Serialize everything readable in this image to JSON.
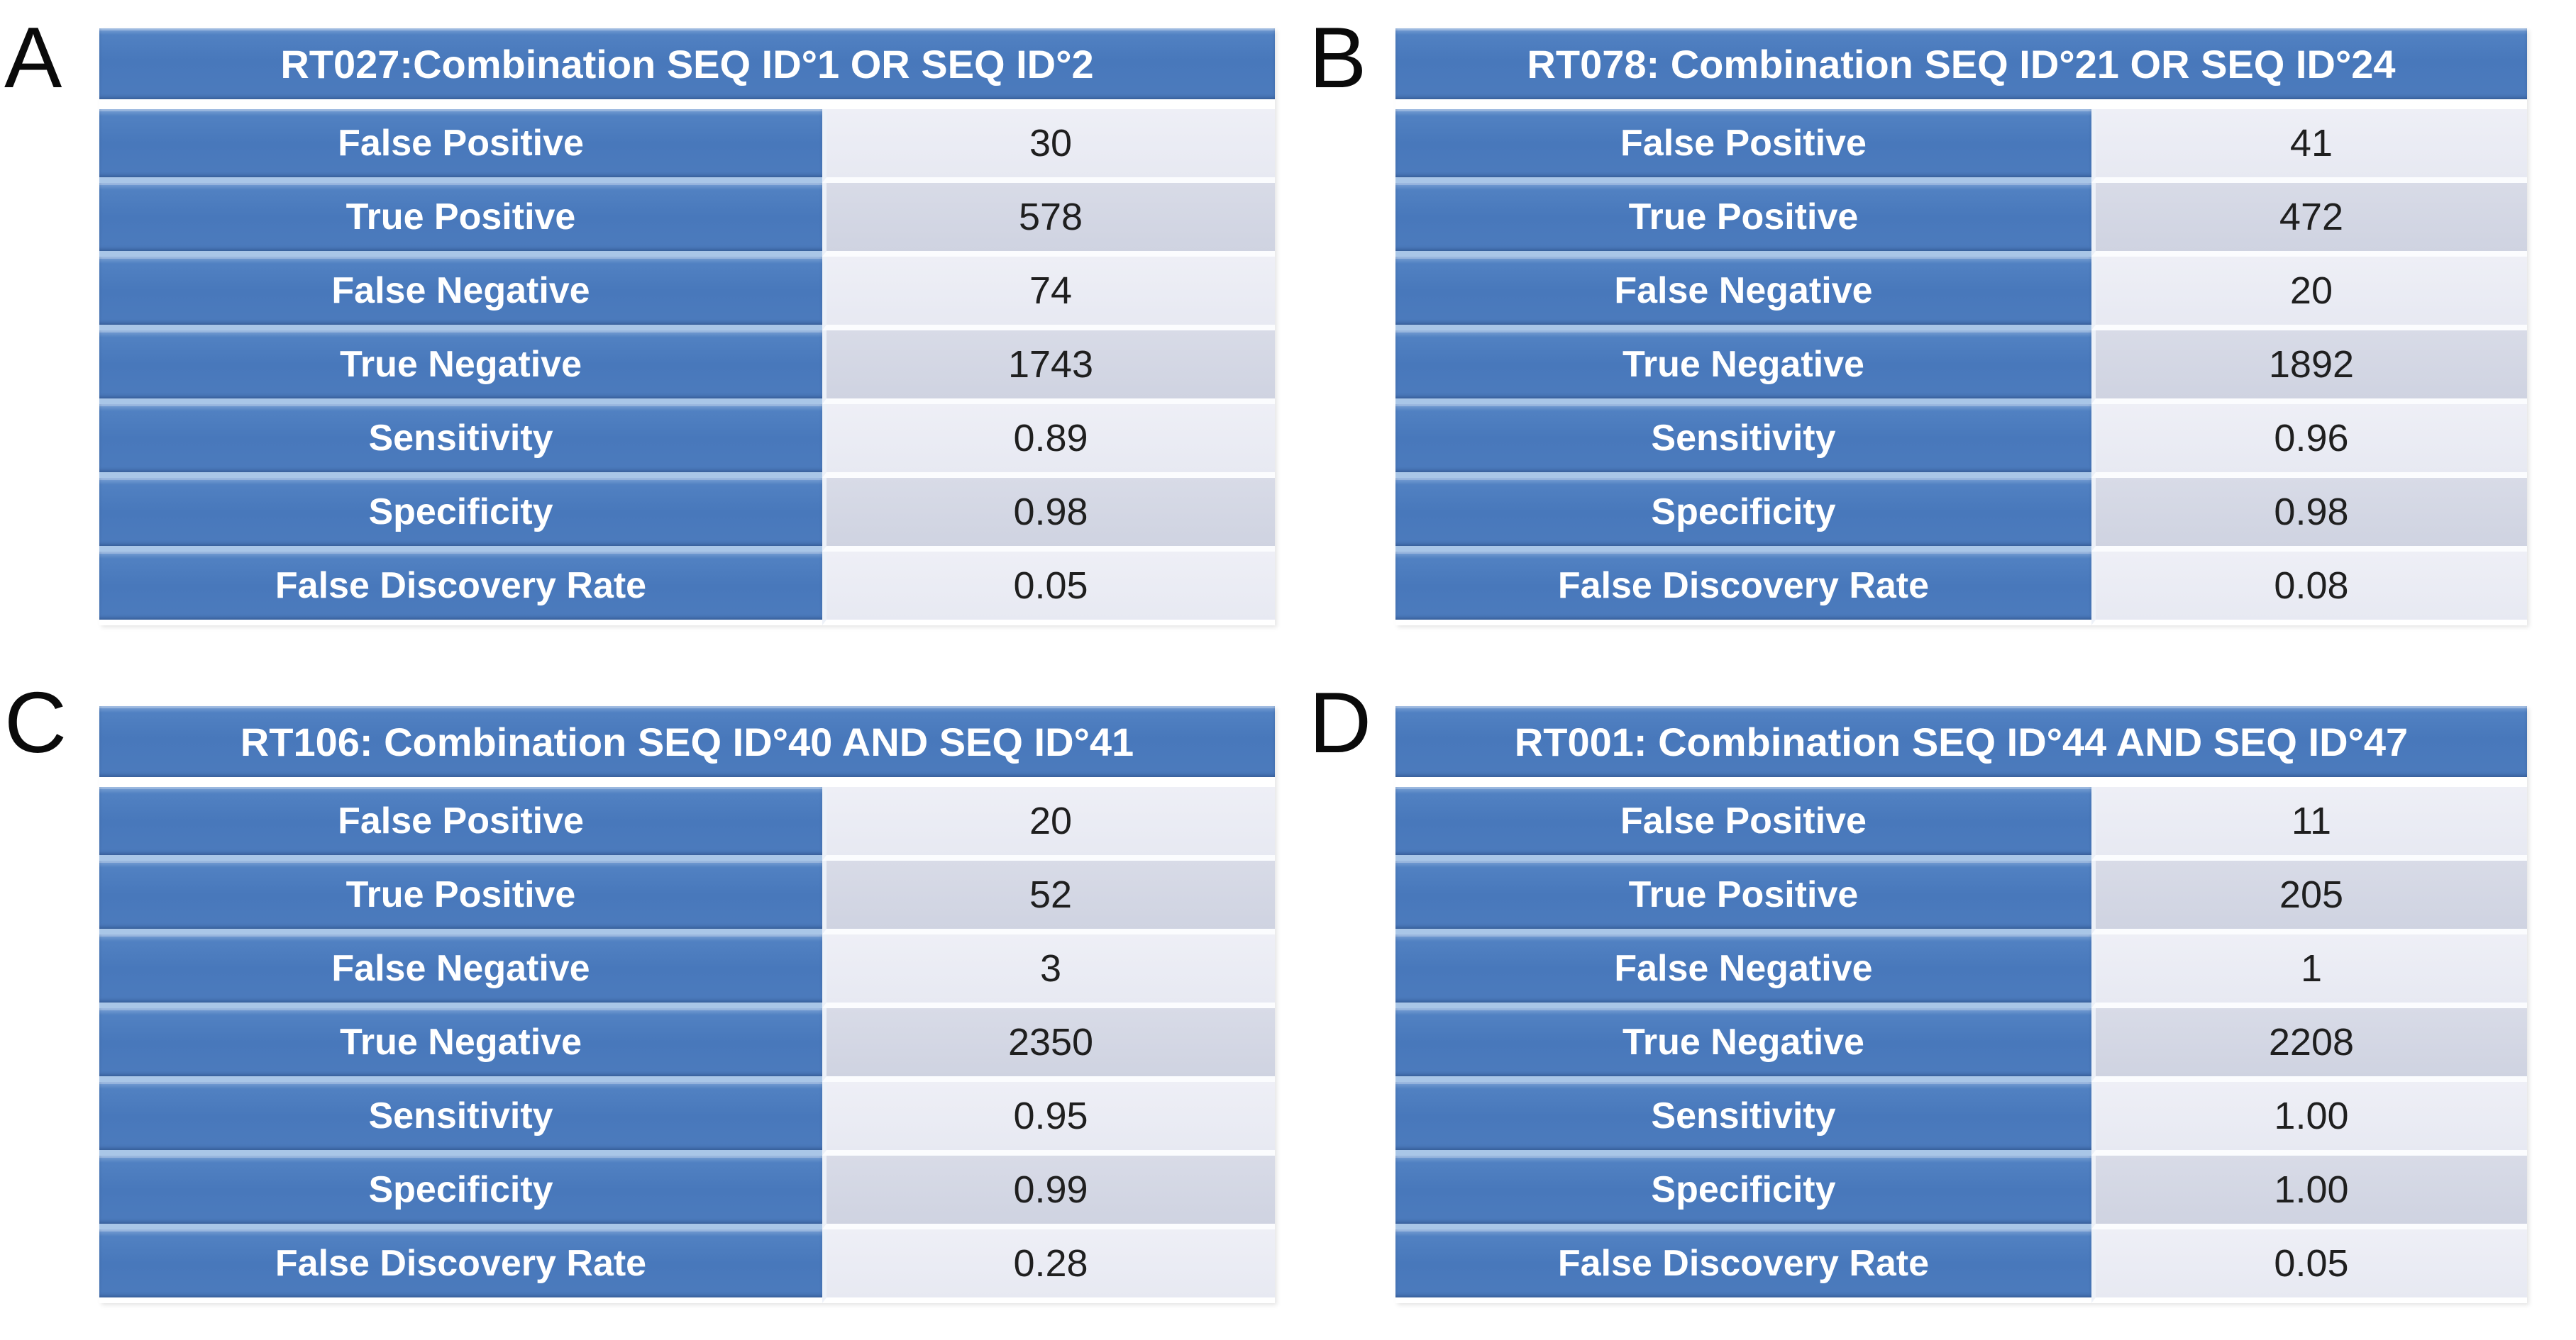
{
  "colors": {
    "table_blue": "#4878BB",
    "row_band_dark": "#D3D6E3",
    "row_band_light": "#EAECF4",
    "label_separator_blue": "#A9C6E7",
    "header_text": "#FFFFFF",
    "value_text": "#1F1F1F"
  },
  "panels": [
    {
      "letter": "A",
      "title": "RT027:Combination SEQ ID°1 OR SEQ ID°2",
      "rows": [
        {
          "label": "False Positive",
          "value": "30"
        },
        {
          "label": "True Positive",
          "value": "578"
        },
        {
          "label": "False Negative",
          "value": "74"
        },
        {
          "label": "True Negative",
          "value": "1743"
        },
        {
          "label": "Sensitivity",
          "value": "0.89"
        },
        {
          "label": "Specificity",
          "value": "0.98"
        },
        {
          "label": "False Discovery Rate",
          "value": "0.05"
        }
      ]
    },
    {
      "letter": "B",
      "title": "RT078: Combination SEQ ID°21 OR SEQ ID°24",
      "rows": [
        {
          "label": "False Positive",
          "value": "41"
        },
        {
          "label": "True Positive",
          "value": "472"
        },
        {
          "label": "False Negative",
          "value": "20"
        },
        {
          "label": "True Negative",
          "value": "1892"
        },
        {
          "label": "Sensitivity",
          "value": "0.96"
        },
        {
          "label": "Specificity",
          "value": "0.98"
        },
        {
          "label": "False Discovery Rate",
          "value": "0.08"
        }
      ]
    },
    {
      "letter": "C",
      "title": "RT106: Combination SEQ ID°40 AND SEQ ID°41",
      "rows": [
        {
          "label": "False Positive",
          "value": "20"
        },
        {
          "label": "True Positive",
          "value": "52"
        },
        {
          "label": "False Negative",
          "value": "3"
        },
        {
          "label": "True Negative",
          "value": "2350"
        },
        {
          "label": "Sensitivity",
          "value": "0.95"
        },
        {
          "label": "Specificity",
          "value": "0.99"
        },
        {
          "label": "False Discovery Rate",
          "value": "0.28"
        }
      ]
    },
    {
      "letter": "D",
      "title": "RT001: Combination SEQ ID°44 AND SEQ ID°47",
      "rows": [
        {
          "label": "False Positive",
          "value": "11"
        },
        {
          "label": "True Positive",
          "value": "205"
        },
        {
          "label": "False Negative",
          "value": "1"
        },
        {
          "label": "True Negative",
          "value": "2208"
        },
        {
          "label": "Sensitivity",
          "value": "1.00"
        },
        {
          "label": "Specificity",
          "value": "1.00"
        },
        {
          "label": "False Discovery Rate",
          "value": "0.05"
        }
      ]
    }
  ]
}
